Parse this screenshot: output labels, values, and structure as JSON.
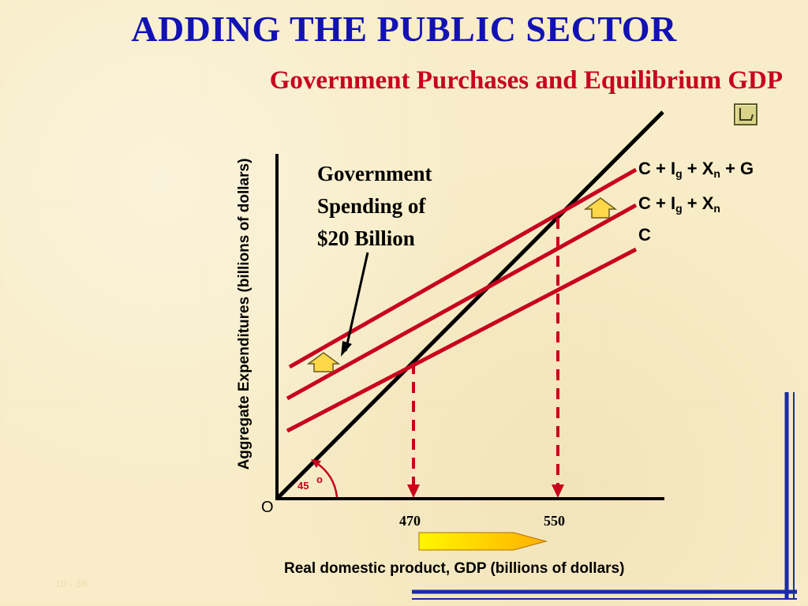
{
  "slide": {
    "title": "ADDING THE PUBLIC SECTOR",
    "subtitle": "Government Purchases and Equilibrium GDP",
    "annotation": [
      "Government",
      "Spending of",
      "$20 Billion"
    ],
    "slide_number": "10 - 36",
    "nav_icon": "return-icon"
  },
  "colors": {
    "title": "#1212b4",
    "subtitle": "#c8001e",
    "lines": "#c8001e",
    "axis": "#000000",
    "arrow_fill": "#ffd84a",
    "frame": "#1a2ab0"
  },
  "chart_data": {
    "type": "line",
    "xlabel": "Real domestic product, GDP (billions of dollars)",
    "ylabel": "Aggregate Expenditures (billions of dollars)",
    "origin_label": "O",
    "angle_label": "45",
    "angle_degree": "o",
    "x_ticks": [
      {
        "value": 470,
        "label": "470"
      },
      {
        "value": 550,
        "label": "550"
      }
    ],
    "line_labels": {
      "cigxg": {
        "base": "C + I",
        "sub1": "g",
        "mid": " + X",
        "sub2": "n",
        "end": " + G"
      },
      "cigx": {
        "base": "C + I",
        "sub1": "g",
        "mid": " + X",
        "sub2": "n"
      },
      "c": "C"
    },
    "equilibria": [
      {
        "gdp": 470,
        "expenditure": 470
      },
      {
        "gdp": 550,
        "expenditure": 550
      }
    ]
  }
}
